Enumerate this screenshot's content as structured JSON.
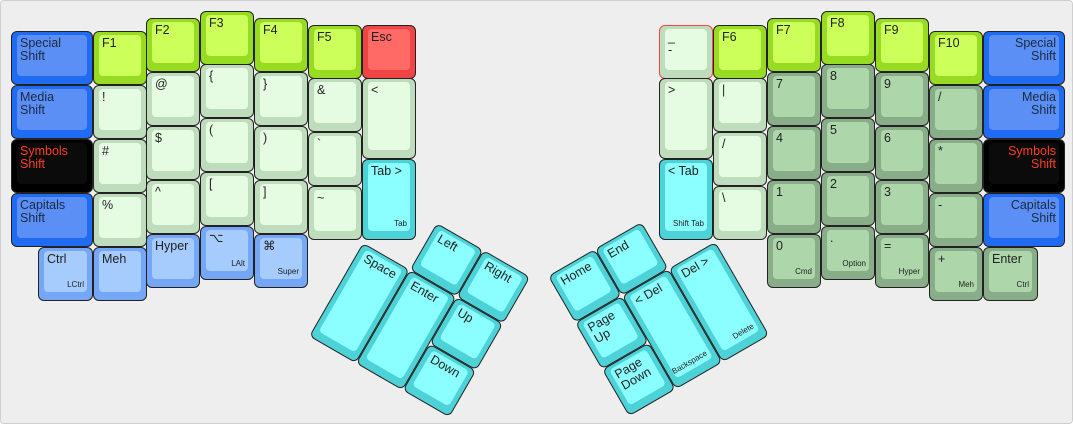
{
  "palette": {
    "blue": {
      "outer": "#1f6cf2",
      "inner": "#5b8ff6",
      "text": "#1a2a40"
    },
    "black": {
      "outer": "#000000",
      "inner": "#0b0b0b",
      "text": "#ff3b22"
    },
    "lightblue": {
      "outer": "#76a6f6",
      "inner": "#a6cbfd",
      "text": "#222222"
    },
    "fkey": {
      "outer": "#97dc22",
      "inner": "#ccff5a",
      "text": "#222222"
    },
    "red": {
      "outer": "#f14444",
      "inner": "#ff6a66",
      "text": "#222222"
    },
    "lightgreen": {
      "outer": "#bfdcbd",
      "inner": "#e5fce3",
      "text": "#222222"
    },
    "lightgreen-red": {
      "outer": "#bfdcbd",
      "inner": "#e5fce3",
      "text": "#222222",
      "border": "#ff4444"
    },
    "cyan": {
      "outer": "#4dd2d8",
      "inner": "#8bffff",
      "text": "#222222"
    },
    "numpad": {
      "outer": "#89ad89",
      "inner": "#aed6ab",
      "text": "#222222"
    }
  },
  "left_keys": [
    {
      "label": "Special\nShift",
      "sub": "",
      "style": "blue"
    },
    {
      "label": "Media\nShift",
      "sub": "",
      "style": "blue"
    },
    {
      "label": "Symbols\nShift",
      "sub": "",
      "style": "black"
    },
    {
      "label": "Capitals\nShift",
      "sub": "",
      "style": "blue"
    },
    {
      "label": "Ctrl",
      "sub": "LCtrl",
      "style": "lightblue"
    },
    {
      "label": "F1",
      "sub": "",
      "style": "fkey"
    },
    {
      "label": "!",
      "sub": "",
      "style": "lightgreen"
    },
    {
      "label": "#",
      "sub": "",
      "style": "lightgreen"
    },
    {
      "label": "%",
      "sub": "",
      "style": "lightgreen"
    },
    {
      "label": "Meh",
      "sub": "",
      "style": "lightblue"
    },
    {
      "label": "F2",
      "sub": "",
      "style": "fkey"
    },
    {
      "label": "@",
      "sub": "",
      "style": "lightgreen"
    },
    {
      "label": "$",
      "sub": "",
      "style": "lightgreen"
    },
    {
      "label": "^",
      "sub": "",
      "style": "lightgreen"
    },
    {
      "label": "Hyper",
      "sub": "",
      "style": "lightblue"
    },
    {
      "label": "F3",
      "sub": "",
      "style": "fkey"
    },
    {
      "label": "{",
      "sub": "",
      "style": "lightgreen"
    },
    {
      "label": "(",
      "sub": "",
      "style": "lightgreen"
    },
    {
      "label": "[",
      "sub": "",
      "style": "lightgreen"
    },
    {
      "label": "⌥",
      "sub": "LAlt",
      "style": "lightblue"
    },
    {
      "label": "F4",
      "sub": "",
      "style": "fkey"
    },
    {
      "label": "}",
      "sub": "",
      "style": "lightgreen"
    },
    {
      "label": ")",
      "sub": "",
      "style": "lightgreen"
    },
    {
      "label": "]",
      "sub": "",
      "style": "lightgreen"
    },
    {
      "label": "⌘",
      "sub": "Super",
      "style": "lightblue"
    },
    {
      "label": "F5",
      "sub": "",
      "style": "fkey"
    },
    {
      "label": "&",
      "sub": "",
      "style": "lightgreen"
    },
    {
      "label": "`",
      "sub": "",
      "style": "lightgreen"
    },
    {
      "label": "~",
      "sub": "",
      "style": "lightgreen"
    },
    {
      "label": "Esc",
      "sub": "",
      "style": "red"
    },
    {
      "label": "<",
      "sub": "",
      "style": "lightgreen"
    },
    {
      "label": "Tab >",
      "sub": "Tab",
      "style": "cyan"
    }
  ],
  "right_keys": [
    {
      "label": "_\n-",
      "sub": "",
      "style": "lightgreen-red"
    },
    {
      "label": ">",
      "sub": "",
      "style": "lightgreen"
    },
    {
      "label": "< Tab",
      "sub": "Shift Tab",
      "style": "cyan"
    },
    {
      "label": "F6",
      "sub": "",
      "style": "fkey"
    },
    {
      "label": "|",
      "sub": "",
      "style": "lightgreen"
    },
    {
      "label": "/",
      "sub": "",
      "style": "lightgreen"
    },
    {
      "label": "\\",
      "sub": "",
      "style": "lightgreen"
    },
    {
      "label": "F7",
      "sub": "",
      "style": "fkey"
    },
    {
      "label": "7",
      "sub": "",
      "style": "numpad"
    },
    {
      "label": "4",
      "sub": "",
      "style": "numpad"
    },
    {
      "label": "1",
      "sub": "",
      "style": "numpad"
    },
    {
      "label": "0",
      "sub": "Cmd",
      "style": "numpad"
    },
    {
      "label": "F8",
      "sub": "",
      "style": "fkey"
    },
    {
      "label": "8",
      "sub": "",
      "style": "numpad"
    },
    {
      "label": "5",
      "sub": "",
      "style": "numpad"
    },
    {
      "label": "2",
      "sub": "",
      "style": "numpad"
    },
    {
      "label": ".",
      "sub": "Option",
      "style": "numpad"
    },
    {
      "label": "F9",
      "sub": "",
      "style": "fkey"
    },
    {
      "label": "9",
      "sub": "",
      "style": "numpad"
    },
    {
      "label": "6",
      "sub": "",
      "style": "numpad"
    },
    {
      "label": "3",
      "sub": "",
      "style": "numpad"
    },
    {
      "label": "=",
      "sub": "Hyper",
      "style": "numpad"
    },
    {
      "label": "F10",
      "sub": "",
      "style": "fkey"
    },
    {
      "label": "/",
      "sub": "",
      "style": "numpad"
    },
    {
      "label": "*",
      "sub": "",
      "style": "numpad"
    },
    {
      "label": "-",
      "sub": "",
      "style": "numpad"
    },
    {
      "label": "+",
      "sub": "Meh",
      "style": "numpad"
    },
    {
      "label": "Special\nShift",
      "sub": "",
      "style": "blue"
    },
    {
      "label": "Media\nShift",
      "sub": "",
      "style": "blue"
    },
    {
      "label": "Symbols\nShift",
      "sub": "",
      "style": "black"
    },
    {
      "label": "Capitals\nShift",
      "sub": "",
      "style": "blue"
    },
    {
      "label": "Enter",
      "sub": "Ctrl",
      "style": "numpad"
    }
  ],
  "left_thumb": [
    {
      "label": "Left",
      "sub": "",
      "style": "cyan"
    },
    {
      "label": "Right",
      "sub": "",
      "style": "cyan"
    },
    {
      "label": "Space",
      "sub": "",
      "style": "cyan"
    },
    {
      "label": "Enter",
      "sub": "",
      "style": "cyan"
    },
    {
      "label": "Up",
      "sub": "",
      "style": "cyan"
    },
    {
      "label": "Down",
      "sub": "",
      "style": "cyan"
    }
  ],
  "right_thumb": [
    {
      "label": "Home",
      "sub": "",
      "style": "cyan"
    },
    {
      "label": "End",
      "sub": "",
      "style": "cyan"
    },
    {
      "label": "Page\nUp",
      "sub": "",
      "style": "cyan"
    },
    {
      "label": "< Del",
      "sub": "Backspace",
      "style": "cyan"
    },
    {
      "label": "Del >",
      "sub": "Delete",
      "style": "cyan"
    },
    {
      "label": "Page\nDown",
      "sub": "",
      "style": "cyan"
    }
  ]
}
